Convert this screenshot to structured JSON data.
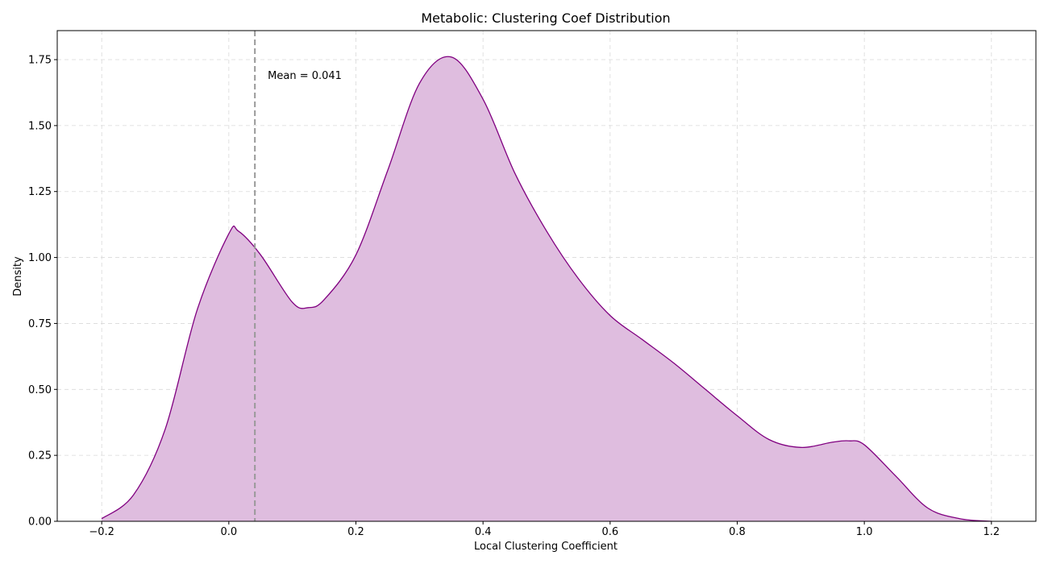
{
  "chart_data": {
    "type": "area",
    "title": "Metabolic: Clustering Coef Distribution",
    "xlabel": "Local Clustering Coefficient",
    "ylabel": "Density",
    "xlim": [
      -0.27,
      1.27
    ],
    "ylim": [
      0,
      1.86
    ],
    "xticks": [
      -0.2,
      0.0,
      0.2,
      0.4,
      0.6,
      0.8,
      1.0,
      1.2
    ],
    "xtick_labels": [
      "−0.2",
      "0.0",
      "0.2",
      "0.4",
      "0.6",
      "0.8",
      "1.0",
      "1.2"
    ],
    "yticks": [
      0,
      0.25,
      0.5,
      0.75,
      1.0,
      1.25,
      1.5,
      1.75
    ],
    "ytick_labels": [
      "0.00",
      "0.25",
      "0.50",
      "0.75",
      "1.00",
      "1.25",
      "1.50",
      "1.75"
    ],
    "grid": true,
    "series": [
      {
        "line_color": "#800080",
        "fill_color": "#dfbddf",
        "x": [
          -0.2,
          -0.15,
          -0.1,
          -0.05,
          0.0,
          0.015,
          0.05,
          0.1,
          0.125,
          0.15,
          0.2,
          0.25,
          0.3,
          0.35,
          0.4,
          0.45,
          0.5,
          0.55,
          0.6,
          0.65,
          0.7,
          0.75,
          0.8,
          0.85,
          0.9,
          0.95,
          0.975,
          1.0,
          1.05,
          1.1,
          1.15,
          1.2
        ],
        "y": [
          0.01,
          0.1,
          0.35,
          0.8,
          1.09,
          1.1,
          1.01,
          0.83,
          0.81,
          0.84,
          1.01,
          1.33,
          1.66,
          1.76,
          1.6,
          1.32,
          1.1,
          0.92,
          0.78,
          0.69,
          0.6,
          0.5,
          0.4,
          0.31,
          0.28,
          0.3,
          0.305,
          0.29,
          0.17,
          0.05,
          0.01,
          0.0
        ]
      }
    ],
    "mean_line": {
      "x": 0.041,
      "color": "#999999",
      "label": "Mean = 0.041"
    }
  }
}
